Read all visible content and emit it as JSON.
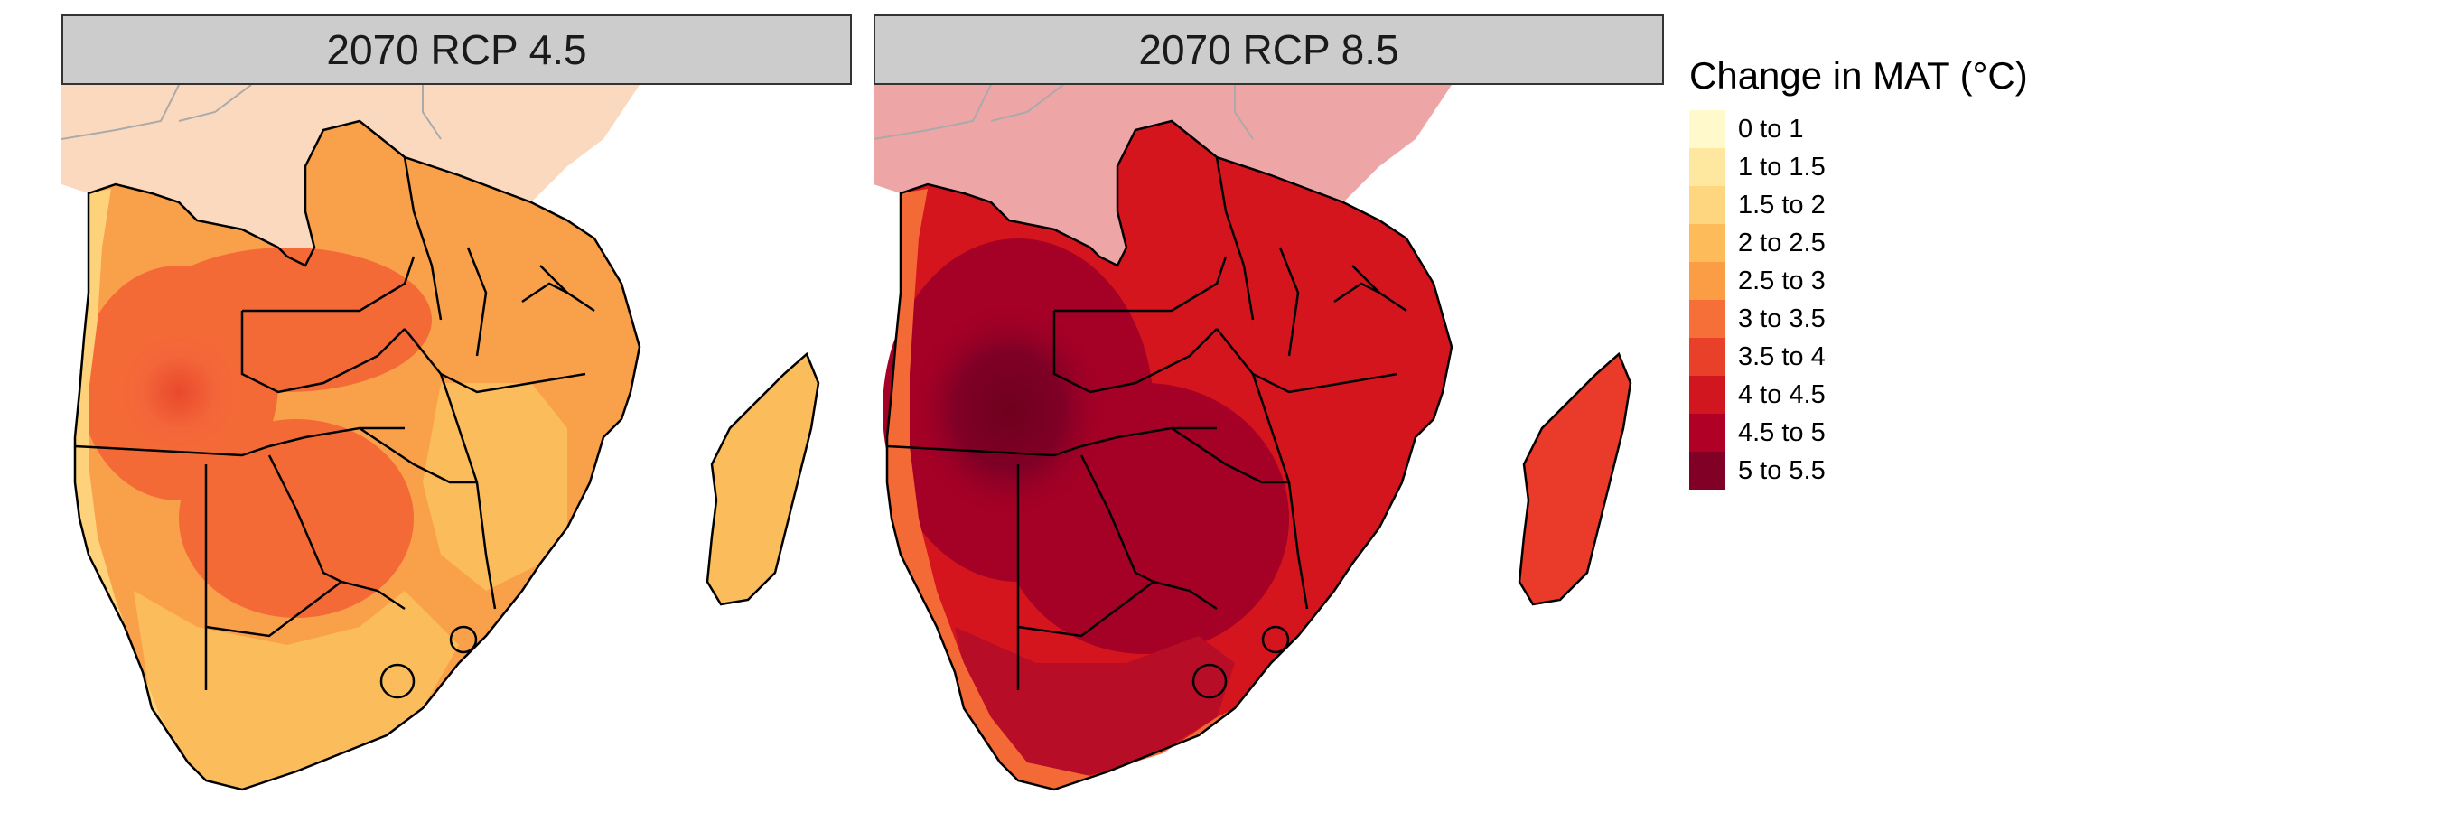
{
  "panels": [
    {
      "title": "2070 RCP 4.5",
      "fills": {
        "north_background": "#fbd9bf",
        "land": "#f9a14a",
        "hotspot": "#f46a37",
        "south": "#fbbd5c",
        "coast": "#fdd27a",
        "madagascar": "#fbbd5c"
      }
    },
    {
      "title": "2070 RCP 8.5",
      "fills": {
        "north_background": "#eda5a6",
        "land": "#d4151e",
        "hotspot": "#a50026",
        "core": "#7d0022",
        "south": "#b80d26",
        "coast": "#f46a37",
        "madagascar": "#ea3a2a"
      }
    }
  ],
  "legend": {
    "title": "Change in MAT (°C)",
    "items": [
      {
        "label": "0 to 1",
        "color": "#fff9cc"
      },
      {
        "label": "1 to 1.5",
        "color": "#fee8a0"
      },
      {
        "label": "1.5 to 2",
        "color": "#fed680"
      },
      {
        "label": "2 to 2.5",
        "color": "#fdbb5a"
      },
      {
        "label": "2.5 to 3",
        "color": "#fb9d45"
      },
      {
        "label": "3 to 3.5",
        "color": "#f66e38"
      },
      {
        "label": "3.5 to 4",
        "color": "#e9402a"
      },
      {
        "label": "4 to 4.5",
        "color": "#d1161f"
      },
      {
        "label": "4.5 to 5",
        "color": "#b00026"
      },
      {
        "label": "5 to 5.5",
        "color": "#800026"
      }
    ]
  }
}
